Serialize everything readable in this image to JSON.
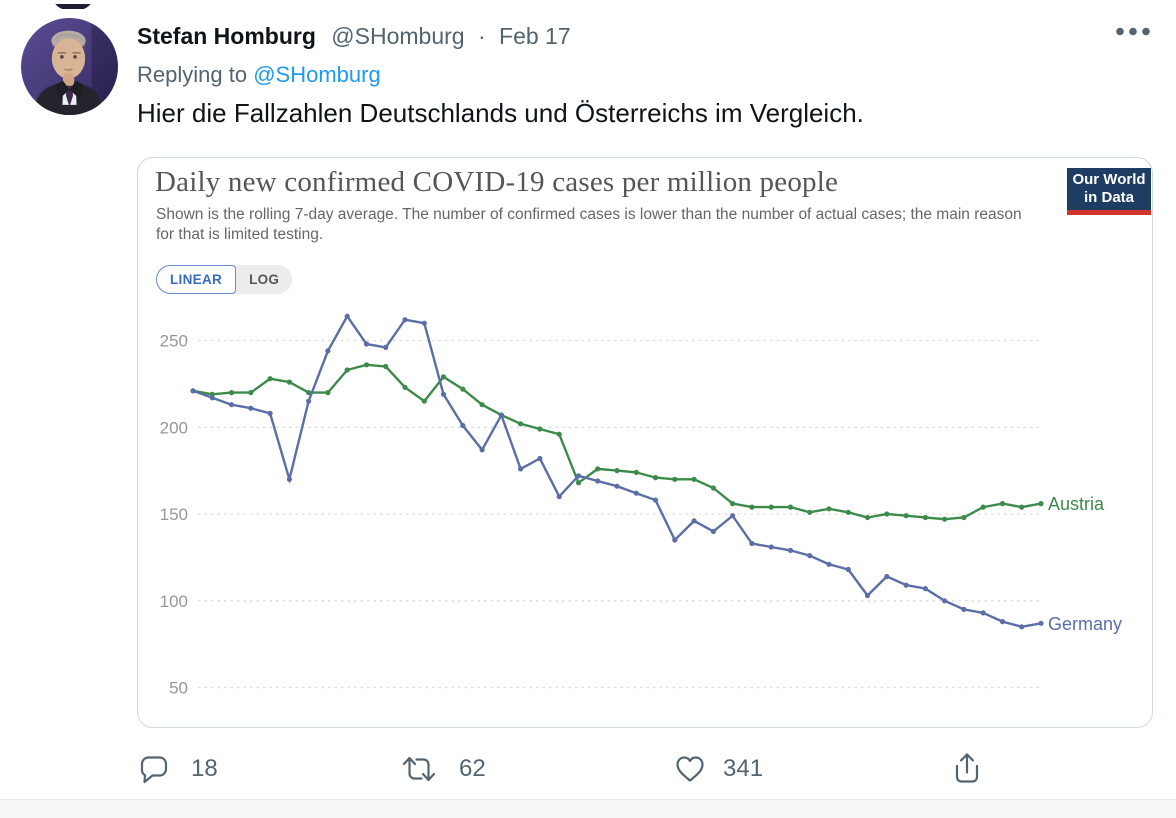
{
  "tweet": {
    "author": "Stefan Homburg",
    "handle": "@SHomburg",
    "separator": "·",
    "date": "Feb 17",
    "replying_to_label": "Replying to",
    "replying_to_handle": "@SHomburg",
    "body": "Hier die Fallzahlen Deutschlands und Österreichs im Vergleich."
  },
  "chart": {
    "logo_line1": "Our World",
    "logo_line2": "in Data",
    "scale_linear_label": "LINEAR",
    "scale_log_label": "LOG"
  },
  "chart_data": {
    "type": "line",
    "title": "Daily new confirmed COVID-19 cases per million people",
    "subtitle": "Shown is the rolling 7-day average. The number of confirmed cases is lower than the number of actual cases; the main reason for that is limited testing.",
    "scale_options": [
      "LINEAR",
      "LOG"
    ],
    "selected_scale": "LINEAR",
    "y_ticks": [
      250,
      200,
      150,
      100,
      50
    ],
    "ylim": [
      40,
      272
    ],
    "x_labels_visible": false,
    "grid": "horizontal dashed gridlines",
    "legend_position": "labels at right end of each line",
    "series": [
      {
        "name": "Austria",
        "color": "#3c8b4c",
        "values": [
          221,
          219,
          220,
          220,
          228,
          226,
          220,
          220,
          233,
          236,
          235,
          223,
          215,
          229,
          222,
          213,
          207,
          202,
          199,
          196,
          168,
          176,
          175,
          174,
          171,
          170,
          170,
          165,
          156,
          154,
          154,
          154,
          151,
          153,
          151,
          148,
          150,
          149,
          148,
          147,
          148,
          154,
          156,
          154,
          156
        ]
      },
      {
        "name": "Germany",
        "color": "#5b6ea6",
        "values": [
          221,
          217,
          213,
          211,
          208,
          170,
          215,
          244,
          264,
          248,
          246,
          262,
          260,
          219,
          201,
          187,
          207,
          176,
          182,
          160,
          172,
          169,
          166,
          162,
          158,
          135,
          146,
          140,
          149,
          133,
          131,
          129,
          126,
          121,
          118,
          103,
          114,
          109,
          107,
          100,
          95,
          93,
          88,
          85,
          87
        ]
      }
    ]
  },
  "actions": {
    "reply_count": "18",
    "retweet_count": "62",
    "like_count": "341"
  },
  "colors": {
    "link_blue": "#1d9bf0",
    "text_primary": "#0f1419",
    "text_secondary": "#536471",
    "austria_green": "#3c8b4c",
    "germany_blue": "#5b6ea6",
    "owid_navy": "#1d3d63",
    "owid_red": "#d0342c"
  }
}
